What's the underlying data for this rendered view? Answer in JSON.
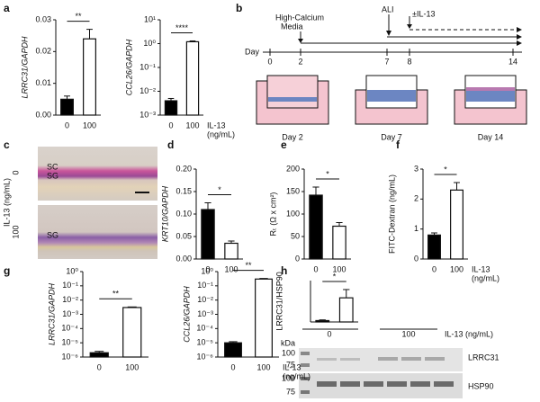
{
  "panel_labels": [
    "a",
    "b",
    "c",
    "d",
    "e",
    "f",
    "g",
    "h"
  ],
  "chart_data": [
    {
      "type": "bar",
      "ylabel": "LRRC31/GAPDH",
      "categories": [
        "0",
        "100"
      ],
      "values": [
        0.005,
        0.024
      ],
      "errors": [
        0.001,
        0.003
      ],
      "colors": [
        "#000000",
        "#ffffff"
      ],
      "ylim": [
        0,
        0.03
      ],
      "yticks": [
        {
          "value": 0,
          "label": "0.00"
        },
        {
          "value": 0.01,
          "label": "0.01"
        },
        {
          "value": 0.02,
          "label": "0.02"
        },
        {
          "value": 0.03,
          "label": "0.03"
        }
      ],
      "significance": "**"
    },
    {
      "type": "bar",
      "ylabel": "CCL26/GAPDH",
      "log": true,
      "categories": [
        "0",
        "100"
      ],
      "values": [
        0.004,
        1.2
      ],
      "errors": [
        0.001,
        0.1
      ],
      "colors": [
        "#000000",
        "#ffffff"
      ],
      "ylim": [
        0.001,
        10
      ],
      "yticks": [
        {
          "value": 0.001,
          "label": "10⁻³"
        },
        {
          "value": 0.01,
          "label": "10⁻²"
        },
        {
          "value": 0.1,
          "label": "10⁻¹"
        },
        {
          "value": 1,
          "label": "10⁰"
        },
        {
          "value": 10,
          "label": "10¹"
        }
      ],
      "significance": "****",
      "xlabel": [
        "IL-13",
        "(ng/mL)"
      ]
    },
    {
      "type": "bar",
      "ylabel": "KRT10/GAPDH",
      "categories": [
        "0",
        "100"
      ],
      "values": [
        0.11,
        0.035
      ],
      "errors": [
        0.015,
        0.005
      ],
      "colors": [
        "#000000",
        "#ffffff"
      ],
      "ylim": [
        0,
        0.2
      ],
      "yticks": [
        {
          "value": 0,
          "label": "0.00"
        },
        {
          "value": 0.05,
          "label": "0.05"
        },
        {
          "value": 0.1,
          "label": "0.10"
        },
        {
          "value": 0.15,
          "label": "0.15"
        },
        {
          "value": 0.2,
          "label": "0.20"
        }
      ],
      "significance": "*"
    },
    {
      "type": "bar",
      "ylabel": "Rₜ (Ω x cm²)",
      "categories": [
        "0",
        "100"
      ],
      "values": [
        142,
        73
      ],
      "errors": [
        18,
        8
      ],
      "colors": [
        "#000000",
        "#ffffff"
      ],
      "ylim": [
        0,
        200
      ],
      "yticks": [
        0,
        50,
        100,
        150,
        200
      ],
      "significance": "*"
    },
    {
      "type": "bar",
      "ylabel": "FITC-Dextran (ng/mL)",
      "categories": [
        "0",
        "100"
      ],
      "values": [
        0.8,
        2.3
      ],
      "errors": [
        0.07,
        0.25
      ],
      "colors": [
        "#000000",
        "#ffffff"
      ],
      "ylim": [
        0,
        3
      ],
      "yticks": [
        0,
        1,
        2,
        3
      ],
      "significance": "*",
      "xlabel": [
        "IL-13",
        "(ng/mL)"
      ]
    },
    {
      "type": "bar",
      "ylabel": "LRRC31/GAPDH",
      "log": true,
      "categories": [
        "0",
        "100"
      ],
      "values": [
        2e-06,
        0.003
      ],
      "errors": [
        5e-07,
        0.0003
      ],
      "colors": [
        "#000000",
        "#ffffff"
      ],
      "ylim": [
        1e-06,
        1
      ],
      "yticks": [
        {
          "value": 1e-06,
          "label": "10⁻⁶"
        },
        {
          "value": 1e-05,
          "label": "10⁻⁵"
        },
        {
          "value": 0.0001,
          "label": "10⁻⁴"
        },
        {
          "value": 0.001,
          "label": "10⁻³"
        },
        {
          "value": 0.01,
          "label": "10⁻²"
        },
        {
          "value": 0.1,
          "label": "10⁻¹"
        },
        {
          "value": 1,
          "label": "10⁰"
        }
      ],
      "significance": "**"
    },
    {
      "type": "bar",
      "ylabel": "CCL26/GAPDH",
      "log": true,
      "categories": [
        "0",
        "100"
      ],
      "values": [
        1e-05,
        0.3
      ],
      "errors": [
        2e-06,
        0.03
      ],
      "colors": [
        "#000000",
        "#ffffff"
      ],
      "ylim": [
        1e-06,
        1
      ],
      "yticks": [
        {
          "value": 1e-06,
          "label": "10⁻⁶"
        },
        {
          "value": 1e-05,
          "label": "10⁻⁵"
        },
        {
          "value": 0.0001,
          "label": "10⁻⁴"
        },
        {
          "value": 0.001,
          "label": "10⁻³"
        },
        {
          "value": 0.01,
          "label": "10⁻²"
        },
        {
          "value": 0.1,
          "label": "10⁻¹"
        },
        {
          "value": 1,
          "label": "10⁰"
        }
      ],
      "significance": "**",
      "xlabel": [
        "IL-13",
        "(ng/mL)"
      ]
    },
    {
      "type": "bar",
      "ylabel": "LRRC31/HSP90",
      "values": [
        0.02,
        0.35
      ],
      "errors": [
        0.01,
        0.12
      ],
      "colors": [
        "#000000",
        "#ffffff"
      ],
      "ylim": [
        0,
        0.6
      ],
      "significance": "*"
    }
  ],
  "schematic": {
    "day_label": "Day",
    "days": [
      "0",
      "2",
      "7",
      "8",
      "14"
    ],
    "media": [
      "High-Calcium",
      "Media"
    ],
    "ali": "ALI",
    "il13": "±IL-13",
    "stages": [
      "Day 2",
      "Day 7",
      "Day 14"
    ]
  },
  "histology": {
    "axis_label": "IL-13 (ng/mL)",
    "doses": [
      "0",
      "100"
    ],
    "layers_top": [
      "SC",
      "SG"
    ],
    "layers_bottom": [
      "SG"
    ]
  },
  "blot": {
    "lanes": [
      "0",
      "100"
    ],
    "treatment": "IL-13 (ng/mL)",
    "unit": "kDa",
    "proteins": [
      "LRRC31",
      "HSP90"
    ],
    "markers": [
      "100",
      "75",
      "100",
      "75"
    ]
  }
}
